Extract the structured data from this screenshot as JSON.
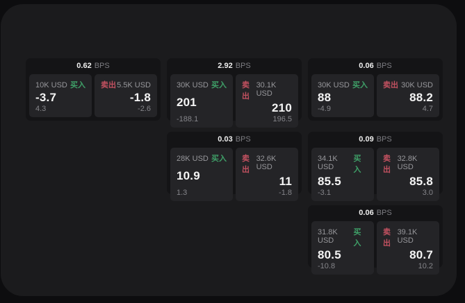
{
  "labels": {
    "bps": "BPS",
    "buy": "买入",
    "sell": "卖出"
  },
  "colors": {
    "page_bg": "#0d0d0f",
    "panel_bg": "#1b1b1d",
    "card_bg": "#141416",
    "tile_bg": "#242427",
    "buy_green": "#3fa068",
    "sell_red": "#c25160",
    "value_text": "#f4f4f4",
    "muted_text": "#85858a"
  },
  "cards": [
    {
      "bps": "0.62",
      "buy": {
        "amount": "10K USD",
        "value": "-3.7",
        "sub": "4.3"
      },
      "sell": {
        "amount": "5.5K USD",
        "value": "-1.8",
        "sub": "-2.6"
      }
    },
    {
      "bps": "2.92",
      "buy": {
        "amount": "30K USD",
        "value": "201",
        "sub": "-188.1"
      },
      "sell": {
        "amount": "30.1K USD",
        "value": "210",
        "sub": "196.5"
      }
    },
    {
      "bps": "0.06",
      "buy": {
        "amount": "30K USD",
        "value": "88",
        "sub": "-4.9"
      },
      "sell": {
        "amount": "30K USD",
        "value": "88.2",
        "sub": "4.7"
      }
    },
    {
      "bps": "0.03",
      "buy": {
        "amount": "28K USD",
        "value": "10.9",
        "sub": "1.3"
      },
      "sell": {
        "amount": "32.6K USD",
        "value": "11",
        "sub": "-1.8"
      }
    },
    {
      "bps": "0.09",
      "buy": {
        "amount": "34.1K USD",
        "value": "85.5",
        "sub": "-3.1"
      },
      "sell": {
        "amount": "32.8K USD",
        "value": "85.8",
        "sub": "3.0"
      }
    },
    {
      "bps": "0.06",
      "buy": {
        "amount": "31.8K USD",
        "value": "80.5",
        "sub": "-10.8"
      },
      "sell": {
        "amount": "39.1K USD",
        "value": "80.7",
        "sub": "10.2"
      }
    }
  ]
}
